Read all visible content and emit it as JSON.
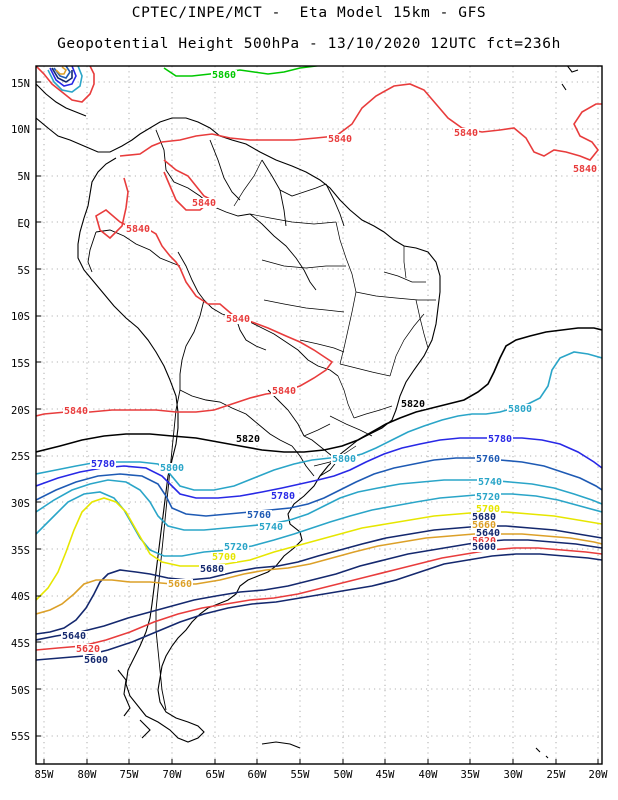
{
  "title_line1": "CPTEC/INPE/MCT -  Eta Model 15km - GFS",
  "title_line2": "Geopotential Height 500hPa - 13/10/2020 12UTC fct=236h",
  "lat_labels": [
    "15N",
    "10N",
    "5N",
    "EQ",
    "5S",
    "10S",
    "15S",
    "20S",
    "25S",
    "30S",
    "35S",
    "40S",
    "45S",
    "50S",
    "55S"
  ],
  "lon_labels": [
    "85W",
    "80W",
    "75W",
    "70W",
    "65W",
    "60W",
    "55W",
    "50W",
    "45W",
    "40W",
    "35W",
    "30W",
    "25W",
    "20W"
  ],
  "contour_labels": [
    {
      "text": "5860",
      "color": "#00c800"
    },
    {
      "text": "5840",
      "color": "#e83c3c"
    },
    {
      "text": "5840",
      "color": "#e83c3c"
    },
    {
      "text": "5840",
      "color": "#e83c3c"
    },
    {
      "text": "5840",
      "color": "#e83c3c"
    },
    {
      "text": "5840",
      "color": "#e83c3c"
    },
    {
      "text": "5840",
      "color": "#e83c3c"
    },
    {
      "text": "5840",
      "color": "#e83c3c"
    },
    {
      "text": "5840",
      "color": "#e83c3c"
    },
    {
      "text": "5820",
      "color": "#000000"
    },
    {
      "text": "5820",
      "color": "#000000"
    },
    {
      "text": "5800",
      "color": "#2aa5c8"
    },
    {
      "text": "5800",
      "color": "#2aa5c8"
    },
    {
      "text": "5800",
      "color": "#2aa5c8"
    },
    {
      "text": "5780",
      "color": "#2828e6"
    },
    {
      "text": "5780",
      "color": "#2828e6"
    },
    {
      "text": "5780",
      "color": "#2828e6"
    },
    {
      "text": "5760",
      "color": "#1e5ab4"
    },
    {
      "text": "5760",
      "color": "#1e5ab4"
    },
    {
      "text": "5740",
      "color": "#2aa5c8"
    },
    {
      "text": "5740",
      "color": "#2aa5c8"
    },
    {
      "text": "5720",
      "color": "#2aa5c8"
    },
    {
      "text": "5720",
      "color": "#2aa5c8"
    },
    {
      "text": "5700",
      "color": "#e6e600"
    },
    {
      "text": "5700",
      "color": "#e6e600"
    },
    {
      "text": "5680",
      "color": "#14286e"
    },
    {
      "text": "5680",
      "color": "#14286e"
    },
    {
      "text": "5660",
      "color": "#dca028"
    },
    {
      "text": "5660",
      "color": "#dca028"
    },
    {
      "text": "5640",
      "color": "#14286e"
    },
    {
      "text": "5640",
      "color": "#14286e"
    },
    {
      "text": "5620",
      "color": "#e83c3c"
    },
    {
      "text": "5620",
      "color": "#e83c3c"
    },
    {
      "text": "5600",
      "color": "#14286e"
    },
    {
      "text": "5600",
      "color": "#14286e"
    }
  ]
}
